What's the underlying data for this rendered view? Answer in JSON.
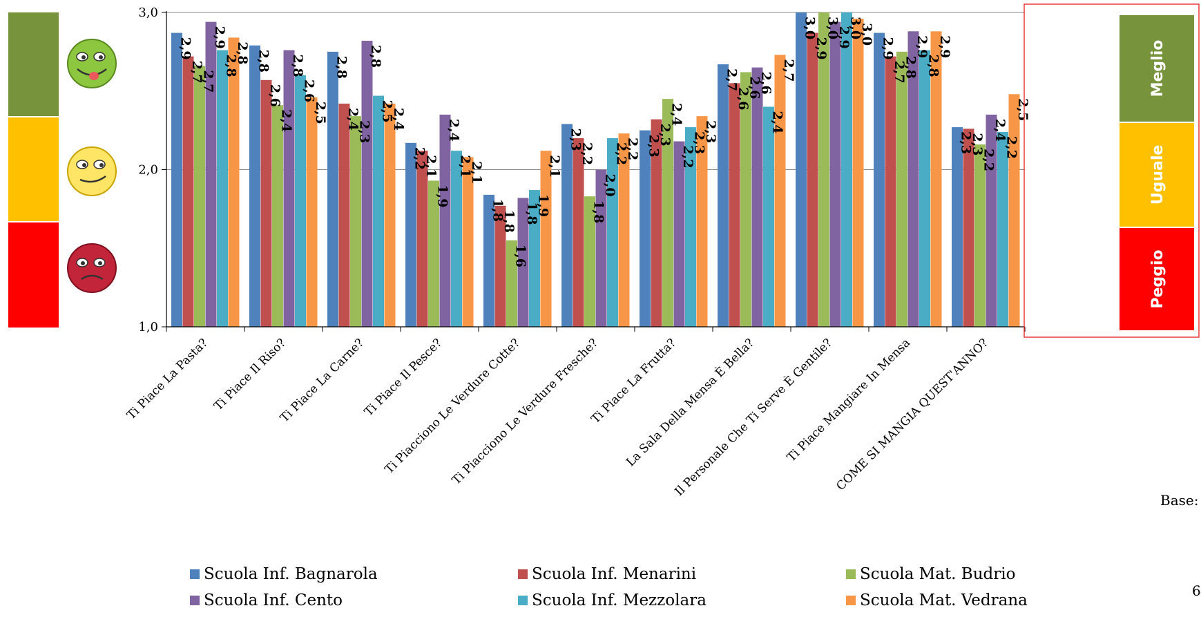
{
  "chart_data": {
    "type": "bar",
    "ylim": [
      1.0,
      3.0
    ],
    "yticks": [
      "1,0",
      "2,0",
      "3,0"
    ],
    "grid": true,
    "legend_position": "bottom",
    "categories": [
      "Ti Piace La Pasta?",
      "Ti Piace Il Riso?",
      "Ti Piace La Carne?",
      "Ti Piace Il Pesce?",
      "Ti Piacciono Le Verdure Cotte?",
      "Ti Piacciono Le Verdure Fresche?",
      "Ti Piace La Frutta?",
      "La Sala Della Mensa È Bella?",
      "Il Personale Che Ti Serve È Gentile?",
      "Ti Piace Mangiare In Mensa",
      "COME SI MANGIA QUEST'ANNO?"
    ],
    "series": [
      {
        "name": "Scuola Inf. Bagnarola",
        "color": "#4F81BD",
        "values": [
          2.87,
          2.79,
          2.75,
          2.17,
          1.84,
          2.29,
          2.25,
          2.67,
          3.0,
          2.87,
          2.27
        ],
        "labels": [
          "2,9",
          "2,8",
          "2,8",
          "2,2",
          "1,8",
          "2,3",
          "2,3",
          "2,7",
          "3,0",
          "2,9",
          "2,3"
        ]
      },
      {
        "name": "Scuola Inf. Menarini",
        "color": "#C0504D",
        "values": [
          2.72,
          2.57,
          2.42,
          2.12,
          1.77,
          2.2,
          2.32,
          2.55,
          2.87,
          2.72,
          2.26
        ],
        "labels": [
          "2,7",
          "2,6",
          "2,4",
          "2,1",
          "1,8",
          "2,2",
          "2,3",
          "2,6",
          "2,9",
          "2,7",
          "2,3"
        ]
      },
      {
        "name": "Scuola Mat. Budrio",
        "color": "#9BBB59",
        "values": [
          2.66,
          2.41,
          2.34,
          1.93,
          1.55,
          1.83,
          2.45,
          2.62,
          3.0,
          2.75,
          2.16
        ],
        "labels": [
          "2,7",
          "2,4",
          "2,3",
          "1,9",
          "1,6",
          "1,8",
          "2,4",
          "2,6",
          "3,0",
          "2,8",
          "2,2"
        ]
      },
      {
        "name": "Scuola Inf. Cento",
        "color": "#8064A2",
        "values": [
          2.94,
          2.76,
          2.82,
          2.35,
          1.82,
          2.0,
          2.18,
          2.65,
          2.94,
          2.88,
          2.35
        ],
        "labels": [
          "2,9",
          "2,8",
          "2,8",
          "2,4",
          "1,8",
          "2,0",
          "2,2",
          "2,6",
          "2,9",
          "2,9",
          "2,4"
        ]
      },
      {
        "name": "Scuola Inf. Mezzolara",
        "color": "#4BACC6",
        "values": [
          2.76,
          2.6,
          2.47,
          2.12,
          1.87,
          2.2,
          2.27,
          2.4,
          3.0,
          2.76,
          2.24
        ],
        "labels": [
          "2,8",
          "2,6",
          "2,5",
          "2,1",
          "1,9",
          "2,2",
          "2,3",
          "2,4",
          "3,0",
          "2,8",
          "2,2"
        ]
      },
      {
        "name": "Scuola Mat. Vedrana",
        "color": "#F79646",
        "values": [
          2.84,
          2.46,
          2.42,
          2.08,
          2.12,
          2.23,
          2.34,
          2.73,
          2.96,
          2.88,
          2.48
        ],
        "labels": [
          "2,8",
          "2,5",
          "2,4",
          "2,1",
          "2,1",
          "2,2",
          "2,3",
          "2,7",
          "3,0",
          "2,9",
          "2,5"
        ]
      }
    ],
    "rating_scale": [
      {
        "label": "Meglio",
        "color": "#77933C"
      },
      {
        "label": "Uguale",
        "color": "#FFC000"
      },
      {
        "label": "Peggio",
        "color": "#FF0000"
      }
    ],
    "left_scale_colors": [
      "#77933C",
      "#FFC000",
      "#FF0000"
    ],
    "highlight_color": "#E8383D"
  },
  "footer": {
    "base_label": "Base:",
    "page_number": "6"
  }
}
